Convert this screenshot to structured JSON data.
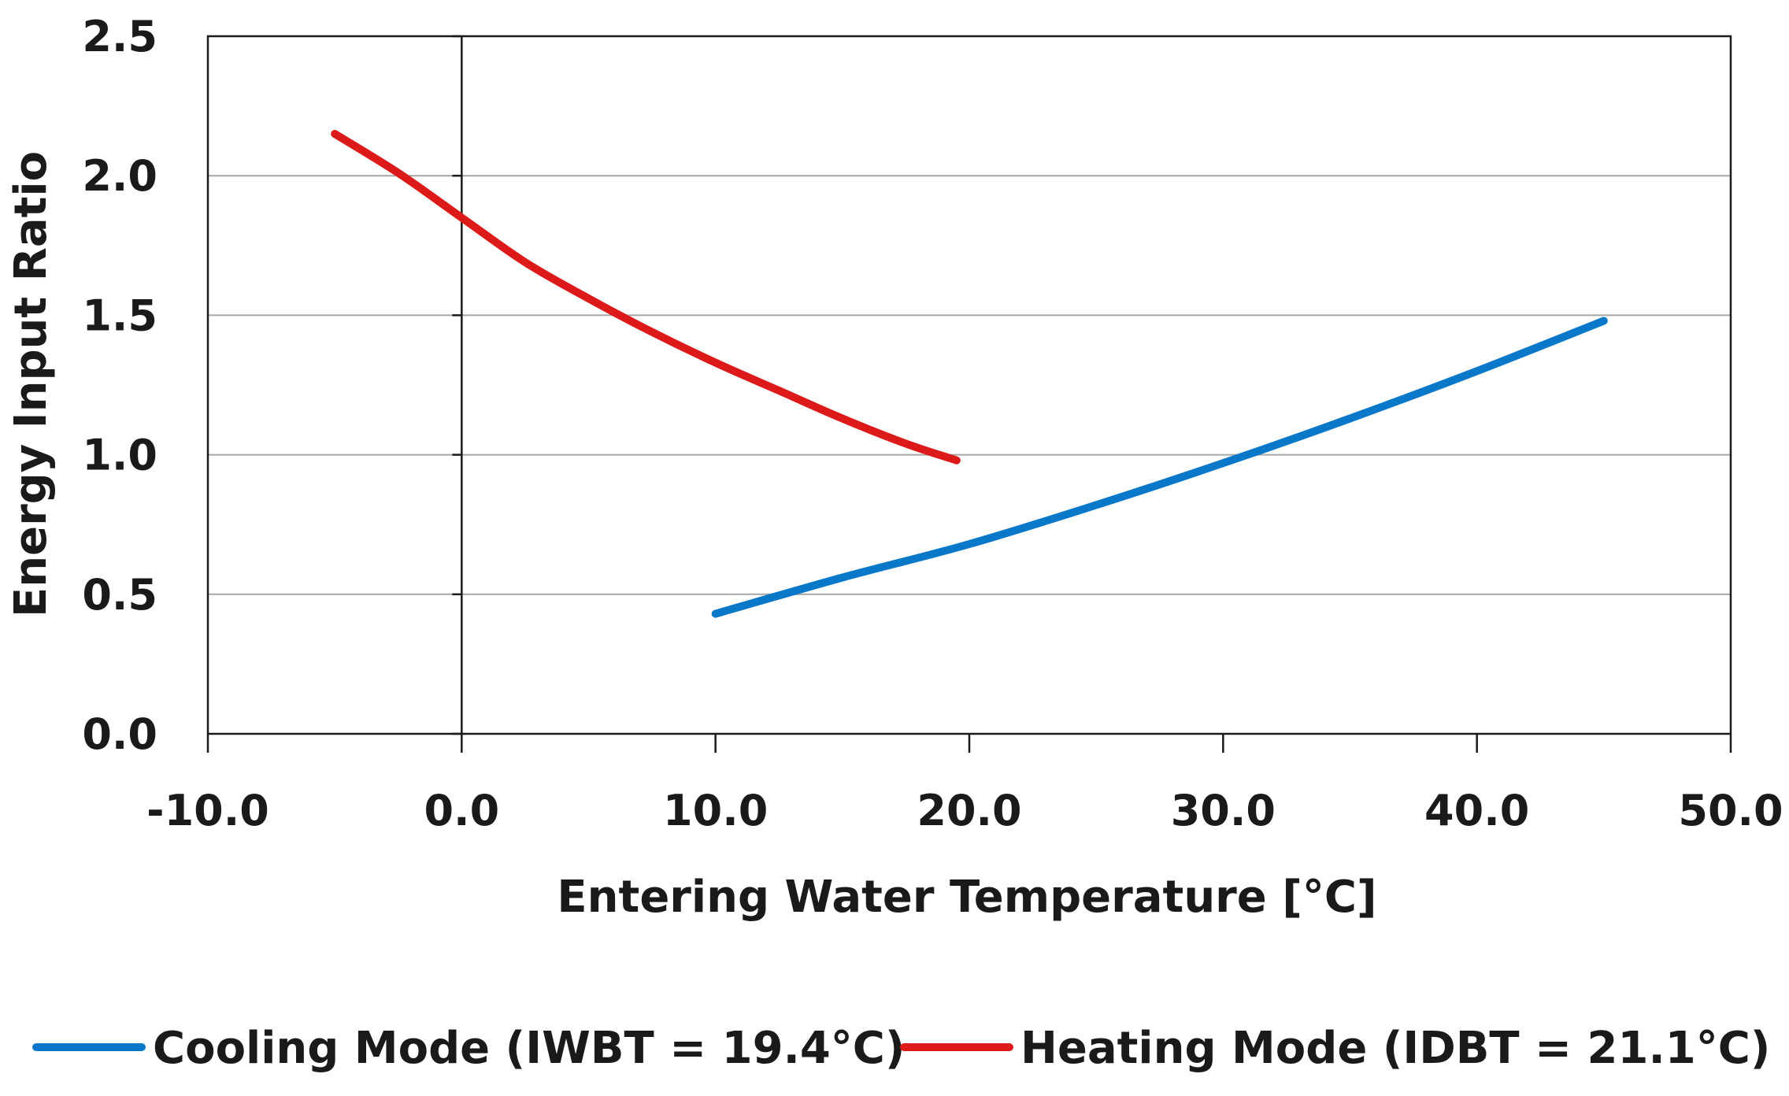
{
  "chart_data": {
    "type": "line",
    "title": "",
    "xlabel": "Entering Water Temperature [°C]",
    "ylabel": "Energy Input Ratio",
    "xlim": [
      -10,
      50
    ],
    "ylim": [
      0,
      2.5
    ],
    "x_ticks": [
      -10,
      0,
      10,
      20,
      30,
      40,
      50
    ],
    "x_tick_labels": [
      "-10.0",
      "0.0",
      "10.0",
      "20.0",
      "30.0",
      "40.0",
      "50.0"
    ],
    "y_ticks": [
      0,
      0.5,
      1.0,
      1.5,
      2.0,
      2.5
    ],
    "y_tick_labels": [
      "0.0",
      "0.5",
      "1.0",
      "1.5",
      "2.0",
      "2.5"
    ],
    "grid": "horizontal",
    "legend_position": "bottom",
    "series": [
      {
        "name": "Cooling Mode (IWBT = 19.4°C)",
        "color": "#0a78c8",
        "x": [
          10,
          15,
          20,
          25,
          30,
          35,
          40,
          45
        ],
        "y": [
          0.43,
          0.56,
          0.68,
          0.82,
          0.97,
          1.13,
          1.3,
          1.48
        ]
      },
      {
        "name": "Heating Mode (IDBT = 21.1°C)",
        "color": "#dd1a1a",
        "x": [
          -5,
          -2.5,
          0,
          2.5,
          5,
          7.5,
          10,
          12.5,
          15,
          17.5,
          19.5
        ],
        "y": [
          2.15,
          2.01,
          1.85,
          1.69,
          1.56,
          1.44,
          1.33,
          1.23,
          1.13,
          1.04,
          0.98
        ]
      }
    ]
  }
}
